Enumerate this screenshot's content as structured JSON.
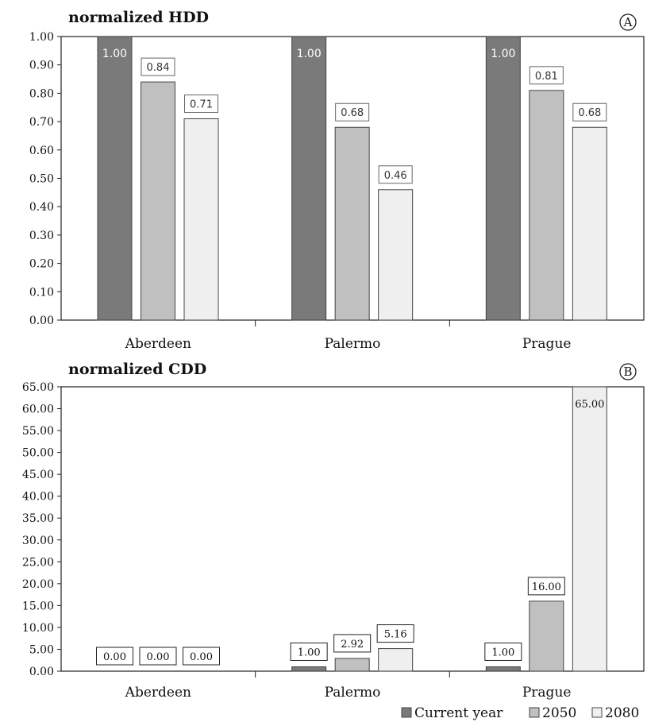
{
  "colors": {
    "current": "#7a7a7a",
    "y2050": "#c0c0c0",
    "y2080": "#efefef",
    "stroke": "#444444"
  },
  "legend": [
    "Current year",
    "2050",
    "2080"
  ],
  "chart_data": [
    {
      "type": "bar",
      "title": "normalized HDD",
      "marker": "A",
      "categories": [
        "Aberdeen",
        "Palermo",
        "Prague"
      ],
      "series": [
        {
          "name": "Current year",
          "values": [
            1.0,
            1.0,
            1.0
          ]
        },
        {
          "name": "2050",
          "values": [
            0.84,
            0.68,
            0.81
          ]
        },
        {
          "name": "2080",
          "values": [
            0.71,
            0.46,
            0.68
          ]
        }
      ],
      "data_labels": [
        [
          "1.00",
          "1.00",
          "1.00"
        ],
        [
          "0.84",
          "0.68",
          "0.81"
        ],
        [
          "0.71",
          "0.46",
          "0.68"
        ]
      ],
      "ylim": [
        0,
        1.0
      ],
      "yticks": [
        "0.00",
        "0.10",
        "0.20",
        "0.30",
        "0.40",
        "0.50",
        "0.60",
        "0.70",
        "0.80",
        "0.90",
        "1.00"
      ],
      "grid": false,
      "legend_position": "bottom-right"
    },
    {
      "type": "bar",
      "title": "normalized CDD",
      "marker": "B",
      "categories": [
        "Aberdeen",
        "Palermo",
        "Prague"
      ],
      "series": [
        {
          "name": "Current year",
          "values": [
            0.0,
            1.0,
            1.0
          ]
        },
        {
          "name": "2050",
          "values": [
            0.0,
            2.92,
            16.0
          ]
        },
        {
          "name": "2080",
          "values": [
            0.0,
            5.16,
            65.0
          ]
        }
      ],
      "data_labels": [
        [
          "0.00",
          "1.00",
          "1.00"
        ],
        [
          "0.00",
          "2.92",
          "16.00"
        ],
        [
          "0.00",
          "5.16",
          "65.00"
        ]
      ],
      "ylim": [
        0,
        65
      ],
      "yticks": [
        "0.00",
        "5.00",
        "10.00",
        "15.00",
        "20.00",
        "25.00",
        "30.00",
        "35.00",
        "40.00",
        "45.00",
        "50.00",
        "55.00",
        "60.00",
        "65.00"
      ],
      "grid": false,
      "legend_position": "bottom-right"
    }
  ]
}
